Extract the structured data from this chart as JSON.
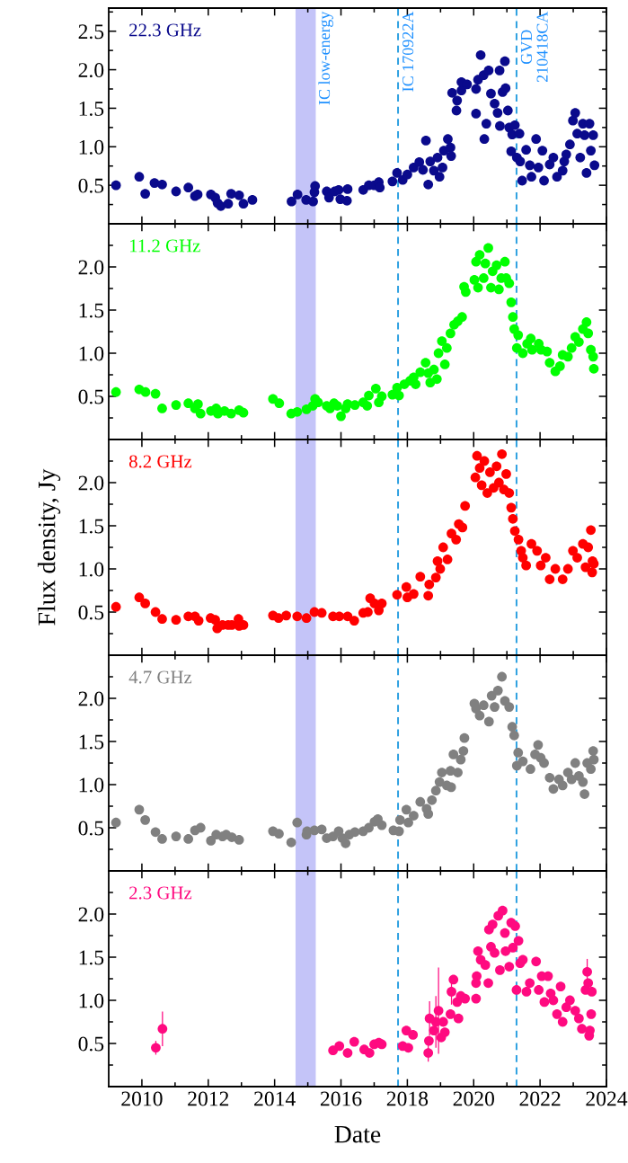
{
  "chart_data": [
    {
      "type": "scatter",
      "marker": "circle",
      "tick_labels": "y",
      "xlim": [
        2009,
        2024
      ],
      "ylim": [
        0,
        2.8
      ],
      "xticks": [
        2010,
        {
          "value": 2011,
          "label": null
        },
        2012,
        {
          "value": 2013,
          "label": null
        },
        2014,
        {
          "value": 2015,
          "label": null
        },
        2016,
        {
          "value": 2017,
          "label": null
        },
        2018,
        {
          "value": 2019,
          "label": null
        },
        2020,
        {
          "value": 2021,
          "label": null
        },
        2022,
        {
          "value": 2023,
          "label": null
        },
        2024
      ],
      "yticks": [
        {
          "value": 0.25,
          "label": null
        },
        0.5,
        {
          "value": 0.75,
          "label": null
        },
        {
          "value": 1.0,
          "label": "1.0"
        },
        {
          "value": 1.25,
          "label": null
        },
        1.5,
        {
          "value": 1.75,
          "label": null
        },
        {
          "value": 2.0,
          "label": "2.0"
        },
        {
          "value": 2.25,
          "label": null
        },
        2.5,
        {
          "value": 2.75,
          "label": null
        }
      ],
      "bands": [
        {
          "axis": "x",
          "from": 2014.63,
          "to": 2015.24,
          "label": "IC low-energy",
          "color": "#c4c4f8"
        }
      ],
      "ref_lines": [
        {
          "axis": "x",
          "value": 2017.72,
          "label": "IC 170922A",
          "color": "#2a9fe0",
          "line_style": "dashed"
        },
        {
          "axis": "x",
          "value": 2021.29,
          "label": "GVD\n210418CA",
          "color": "#2a9fe0",
          "line_style": "dashed"
        }
      ],
      "series": [
        {
          "name": "22.3 GHz",
          "color": "#0a0a8c",
          "x": [
            2009.22,
            2009.92,
            2010.1,
            2010.38,
            2010.61,
            2011.03,
            2011.4,
            2011.6,
            2011.68,
            2012.08,
            2012.21,
            2012.28,
            2012.38,
            2012.6,
            2012.69,
            2012.93,
            2013.06,
            2013.33,
            2014.51,
            2014.69,
            2014.95,
            2015.16,
            2015.22,
            2015.2,
            2015.57,
            2015.64,
            2015.81,
            2015.93,
            2015.98,
            2016.18,
            2016.2,
            2016.67,
            2016.84,
            2017.0,
            2017.14,
            2017.17,
            2017.55,
            2017.69,
            2017.86,
            2018.0,
            2018.19,
            2018.36,
            2018.47,
            2018.56,
            2018.63,
            2018.69,
            2018.8,
            2018.91,
            2018.97,
            2019.06,
            2019.1,
            2019.22,
            2019.3,
            2019.32,
            2019.35,
            2019.48,
            2019.5,
            2019.63,
            2019.63,
            2019.8,
            2020.07,
            2020.07,
            2020.13,
            2020.21,
            2020.3,
            2020.32,
            2020.38,
            2020.45,
            2020.52,
            2020.63,
            2020.72,
            2020.78,
            2020.79,
            2020.87,
            2020.94,
            2020.96,
            2021.03,
            2021.07,
            2021.13,
            2021.16,
            2021.24,
            2021.3,
            2021.38,
            2021.4,
            2021.46,
            2021.58,
            2021.69,
            2021.74,
            2021.88,
            2021.95,
            2022.07,
            2022.12,
            2022.29,
            2022.4,
            2022.51,
            2022.68,
            2022.73,
            2022.79,
            2022.9,
            2022.99,
            2023.06,
            2023.12,
            2023.21,
            2023.29,
            2023.34,
            2023.4,
            2023.49,
            2023.53,
            2023.6,
            2023.64
          ],
          "values": [
            0.5,
            0.61,
            0.39,
            0.53,
            0.51,
            0.42,
            0.47,
            0.36,
            0.38,
            0.38,
            0.34,
            0.27,
            0.23,
            0.26,
            0.39,
            0.37,
            0.26,
            0.31,
            0.29,
            0.38,
            0.31,
            0.29,
            0.49,
            0.41,
            0.42,
            0.34,
            0.42,
            0.44,
            0.32,
            0.3,
            0.45,
            0.44,
            0.5,
            0.5,
            0.54,
            0.47,
            0.55,
            0.66,
            0.57,
            0.64,
            0.73,
            0.8,
            0.7,
            1.08,
            0.51,
            0.81,
            0.69,
            0.86,
            0.61,
            0.73,
            0.95,
            1.1,
            0.99,
            0.88,
            1.7,
            1.47,
            1.6,
            1.73,
            1.84,
            1.81,
            1.43,
            1.75,
            1.87,
            2.19,
            1.93,
            1.1,
            1.3,
            1.99,
            1.69,
            1.56,
            1.44,
            1.99,
            1.27,
            1.71,
            2.11,
            1.76,
            1.47,
            1.25,
            0.94,
            1.16,
            1.28,
            0.86,
            1.17,
            0.81,
            0.56,
            0.96,
            0.76,
            0.61,
            1.1,
            0.73,
            0.95,
            0.56,
            0.77,
            0.86,
            0.61,
            0.69,
            0.81,
            0.9,
            1.03,
            1.34,
            1.44,
            1.17,
            0.86,
            1.3,
            1.15,
            0.66,
            1.3,
            0.95,
            1.15,
            0.76
          ]
        }
      ]
    },
    {
      "type": "scatter",
      "marker": "circle",
      "tick_labels": "y",
      "xlim": [
        2009,
        2024
      ],
      "ylim": [
        0,
        2.5
      ],
      "xticks": [
        2010,
        {
          "value": 2011,
          "label": null
        },
        2012,
        {
          "value": 2013,
          "label": null
        },
        2014,
        {
          "value": 2015,
          "label": null
        },
        2016,
        {
          "value": 2017,
          "label": null
        },
        2018,
        {
          "value": 2019,
          "label": null
        },
        2020,
        {
          "value": 2021,
          "label": null
        },
        2022,
        {
          "value": 2023,
          "label": null
        },
        2024
      ],
      "yticks": [
        {
          "value": 0.25,
          "label": null
        },
        0.5,
        {
          "value": 0.75,
          "label": null
        },
        {
          "value": 1.0,
          "label": "1.0"
        },
        {
          "value": 1.25,
          "label": null
        },
        1.5,
        {
          "value": 1.75,
          "label": null
        },
        {
          "value": 2.0,
          "label": "2.0"
        },
        {
          "value": 2.25,
          "label": null
        }
      ],
      "bands": [
        {
          "axis": "x",
          "from": 2014.63,
          "to": 2015.24,
          "color": "#c4c4f8"
        }
      ],
      "ref_lines": [
        {
          "axis": "x",
          "value": 2017.72,
          "color": "#2a9fe0",
          "line_style": "dashed"
        },
        {
          "axis": "x",
          "value": 2021.29,
          "color": "#2a9fe0",
          "line_style": "dashed"
        }
      ],
      "series": [
        {
          "name": "11.2 GHz",
          "color": "#00ff00",
          "x": [
            2009.22,
            2009.92,
            2010.11,
            2010.41,
            2010.61,
            2011.03,
            2011.4,
            2011.6,
            2011.69,
            2011.77,
            2012.08,
            2012.24,
            2012.29,
            2012.49,
            2012.69,
            2012.93,
            2013.06,
            2013.95,
            2014.14,
            2014.5,
            2014.68,
            2014.96,
            2015.15,
            2015.22,
            2015.31,
            2015.57,
            2015.67,
            2015.79,
            2015.89,
            2016.0,
            2016.14,
            2016.2,
            2016.42,
            2016.67,
            2016.79,
            2016.84,
            2017.05,
            2017.14,
            2017.23,
            2017.55,
            2017.69,
            2017.75,
            2017.91,
            2018.08,
            2018.19,
            2018.25,
            2018.39,
            2018.55,
            2018.63,
            2018.69,
            2018.8,
            2018.89,
            2018.94,
            2019.04,
            2019.13,
            2019.19,
            2019.3,
            2019.41,
            2019.52,
            2019.65,
            2019.71,
            2019.76,
            2020.02,
            2020.07,
            2020.13,
            2020.18,
            2020.3,
            2020.35,
            2020.44,
            2020.52,
            2020.57,
            2020.69,
            2020.76,
            2020.83,
            2020.94,
            2020.98,
            2021.07,
            2021.13,
            2021.18,
            2021.22,
            2021.3,
            2021.34,
            2021.48,
            2021.61,
            2021.72,
            2021.76,
            2021.96,
            2022.03,
            2022.21,
            2022.29,
            2022.46,
            2022.6,
            2022.68,
            2022.84,
            2022.95,
            2023.06,
            2023.17,
            2023.29,
            2023.4,
            2023.45,
            2023.53,
            2023.6,
            2023.62
          ],
          "values": [
            0.55,
            0.58,
            0.55,
            0.53,
            0.36,
            0.4,
            0.42,
            0.36,
            0.41,
            0.3,
            0.33,
            0.36,
            0.3,
            0.33,
            0.3,
            0.34,
            0.31,
            0.47,
            0.42,
            0.3,
            0.32,
            0.35,
            0.39,
            0.47,
            0.43,
            0.39,
            0.36,
            0.42,
            0.39,
            0.27,
            0.36,
            0.41,
            0.4,
            0.43,
            0.39,
            0.51,
            0.59,
            0.43,
            0.5,
            0.52,
            0.6,
            0.51,
            0.64,
            0.68,
            0.72,
            0.64,
            0.78,
            0.89,
            0.77,
            0.66,
            0.81,
            0.7,
            1.0,
            1.14,
            0.87,
            1.06,
            1.23,
            1.33,
            1.37,
            1.42,
            1.77,
            1.71,
            1.85,
            2.06,
            1.76,
            2.14,
            1.87,
            2.04,
            2.22,
            1.76,
            1.95,
            2.02,
            1.74,
            1.87,
            2.06,
            1.87,
            1.81,
            1.59,
            1.42,
            1.28,
            1.06,
            1.21,
            1.0,
            1.11,
            1.17,
            1.04,
            1.11,
            1.04,
            1.02,
            0.89,
            0.79,
            0.85,
            0.98,
            0.96,
            1.06,
            1.19,
            1.13,
            1.28,
            1.36,
            1.23,
            1.04,
            0.96,
            0.82
          ]
        }
      ]
    },
    {
      "type": "scatter",
      "marker": "circle",
      "tick_labels": "y",
      "xlim": [
        2009,
        2024
      ],
      "ylim": [
        0,
        2.5
      ],
      "ylabel": "Flux density, Jy",
      "xticks": [
        2010,
        {
          "value": 2011,
          "label": null
        },
        2012,
        {
          "value": 2013,
          "label": null
        },
        2014,
        {
          "value": 2015,
          "label": null
        },
        2016,
        {
          "value": 2017,
          "label": null
        },
        2018,
        {
          "value": 2019,
          "label": null
        },
        2020,
        {
          "value": 2021,
          "label": null
        },
        2022,
        {
          "value": 2023,
          "label": null
        },
        2024
      ],
      "yticks": [
        {
          "value": 0.25,
          "label": null
        },
        0.5,
        {
          "value": 0.75,
          "label": null
        },
        {
          "value": 1.0,
          "label": "1.0"
        },
        {
          "value": 1.25,
          "label": null
        },
        1.5,
        {
          "value": 1.75,
          "label": null
        },
        {
          "value": 2.0,
          "label": "2.0"
        },
        {
          "value": 2.25,
          "label": null
        }
      ],
      "bands": [
        {
          "axis": "x",
          "from": 2014.63,
          "to": 2015.24,
          "color": "#c4c4f8"
        }
      ],
      "ref_lines": [
        {
          "axis": "x",
          "value": 2017.72,
          "color": "#2a9fe0",
          "line_style": "dashed"
        },
        {
          "axis": "x",
          "value": 2021.29,
          "color": "#2a9fe0",
          "line_style": "dashed"
        }
      ],
      "series": [
        {
          "name": "8.2 GHz",
          "color": "#ff0000",
          "x": [
            2009.22,
            2009.92,
            2010.1,
            2010.41,
            2010.61,
            2011.03,
            2011.4,
            2011.6,
            2011.71,
            2012.07,
            2012.21,
            2012.27,
            2012.43,
            2012.6,
            2012.71,
            2012.91,
            2012.93,
            2013.06,
            2013.95,
            2014.12,
            2014.35,
            2014.68,
            2014.96,
            2015.2,
            2015.42,
            2015.76,
            2015.95,
            2016.2,
            2016.4,
            2016.67,
            2016.81,
            2016.88,
            2017.01,
            2017.14,
            2017.23,
            2017.69,
            2017.97,
            2018.0,
            2018.19,
            2018.39,
            2018.63,
            2018.66,
            2018.86,
            2018.91,
            2018.99,
            2019.08,
            2019.21,
            2019.33,
            2019.47,
            2019.55,
            2019.66,
            2019.74,
            2020.05,
            2020.1,
            2020.18,
            2020.24,
            2020.32,
            2020.41,
            2020.49,
            2020.6,
            2020.69,
            2020.76,
            2020.85,
            2020.91,
            2020.98,
            2021.07,
            2021.13,
            2021.18,
            2021.24,
            2021.35,
            2021.43,
            2021.48,
            2021.58,
            2021.74,
            2021.91,
            2022.02,
            2022.17,
            2022.29,
            2022.46,
            2022.68,
            2022.84,
            2022.99,
            2023.12,
            2023.29,
            2023.37,
            2023.45,
            2023.53,
            2023.58,
            2023.62,
            2023.57
          ],
          "values": [
            0.56,
            0.67,
            0.6,
            0.5,
            0.42,
            0.41,
            0.45,
            0.45,
            0.4,
            0.43,
            0.41,
            0.31,
            0.35,
            0.35,
            0.35,
            0.42,
            0.34,
            0.35,
            0.46,
            0.43,
            0.46,
            0.45,
            0.43,
            0.5,
            0.49,
            0.45,
            0.45,
            0.45,
            0.4,
            0.49,
            0.5,
            0.66,
            0.6,
            0.52,
            0.6,
            0.7,
            0.79,
            0.67,
            0.71,
            0.91,
            0.69,
            0.82,
            0.9,
            1.09,
            1.0,
            1.25,
            1.11,
            1.41,
            1.34,
            1.52,
            1.48,
            1.73,
            2.06,
            2.31,
            2.17,
            1.97,
            2.25,
            1.88,
            2.12,
            1.94,
            2.19,
            2.0,
            2.33,
            1.92,
            2.1,
            1.88,
            1.71,
            1.58,
            1.44,
            1.34,
            1.21,
            1.13,
            1.04,
            1.29,
            1.21,
            1.04,
            1.13,
            0.88,
            1.0,
            0.88,
            1.0,
            1.21,
            1.13,
            1.29,
            1.02,
            1.25,
            1.45,
            1.09,
            1.06,
            0.96
          ]
        }
      ]
    },
    {
      "type": "scatter",
      "marker": "circle",
      "tick_labels": "y",
      "xlim": [
        2009,
        2024
      ],
      "ylim": [
        0,
        2.5
      ],
      "xticks": [
        2010,
        {
          "value": 2011,
          "label": null
        },
        2012,
        {
          "value": 2013,
          "label": null
        },
        2014,
        {
          "value": 2015,
          "label": null
        },
        2016,
        {
          "value": 2017,
          "label": null
        },
        2018,
        {
          "value": 2019,
          "label": null
        },
        2020,
        {
          "value": 2021,
          "label": null
        },
        2022,
        {
          "value": 2023,
          "label": null
        },
        2024
      ],
      "yticks": [
        {
          "value": 0.25,
          "label": null
        },
        0.5,
        {
          "value": 0.75,
          "label": null
        },
        {
          "value": 1.0,
          "label": "1.0"
        },
        {
          "value": 1.25,
          "label": null
        },
        1.5,
        {
          "value": 1.75,
          "label": null
        },
        {
          "value": 2.0,
          "label": "2.0"
        },
        {
          "value": 2.25,
          "label": null
        }
      ],
      "bands": [
        {
          "axis": "x",
          "from": 2014.63,
          "to": 2015.24,
          "color": "#c4c4f8"
        }
      ],
      "ref_lines": [
        {
          "axis": "x",
          "value": 2017.72,
          "color": "#2a9fe0",
          "line_style": "dashed"
        },
        {
          "axis": "x",
          "value": 2021.29,
          "color": "#2a9fe0",
          "line_style": "dashed"
        }
      ],
      "series": [
        {
          "name": "4.7 GHz",
          "color": "#808080",
          "x": [
            2009.22,
            2009.92,
            2010.1,
            2010.41,
            2010.61,
            2011.03,
            2011.4,
            2011.6,
            2011.77,
            2012.08,
            2012.24,
            2012.43,
            2012.54,
            2012.71,
            2012.93,
            2013.95,
            2014.13,
            2014.5,
            2014.68,
            2014.96,
            2014.98,
            2015.2,
            2015.42,
            2015.57,
            2015.76,
            2015.93,
            2016.04,
            2016.14,
            2016.25,
            2016.42,
            2016.67,
            2016.84,
            2017.01,
            2017.11,
            2017.23,
            2017.58,
            2017.75,
            2017.78,
            2017.97,
            2018.03,
            2018.19,
            2018.39,
            2018.58,
            2018.63,
            2018.74,
            2018.86,
            2018.97,
            2019.04,
            2019.19,
            2019.32,
            2019.3,
            2019.39,
            2019.52,
            2019.61,
            2019.69,
            2019.72,
            2020.02,
            2020.07,
            2020.18,
            2020.3,
            2020.46,
            2020.54,
            2020.63,
            2020.73,
            2020.85,
            2020.94,
            2021.07,
            2021.16,
            2021.22,
            2021.3,
            2021.34,
            2021.48,
            2021.71,
            2021.85,
            2021.94,
            2022.02,
            2022.12,
            2022.29,
            2022.4,
            2022.57,
            2022.68,
            2022.84,
            2022.95,
            2023.06,
            2023.17,
            2023.29,
            2023.34,
            2023.42,
            2023.53,
            2023.6,
            2023.62
          ],
          "values": [
            0.56,
            0.71,
            0.59,
            0.45,
            0.37,
            0.4,
            0.37,
            0.47,
            0.5,
            0.35,
            0.42,
            0.4,
            0.42,
            0.39,
            0.36,
            0.46,
            0.43,
            0.33,
            0.56,
            0.42,
            0.46,
            0.47,
            0.48,
            0.38,
            0.4,
            0.46,
            0.38,
            0.32,
            0.42,
            0.45,
            0.46,
            0.5,
            0.57,
            0.6,
            0.53,
            0.47,
            0.46,
            0.59,
            0.71,
            0.56,
            0.64,
            0.8,
            0.72,
            0.66,
            0.82,
            0.93,
            1.03,
            1.14,
            0.99,
            0.97,
            1.16,
            1.35,
            1.14,
            1.29,
            1.39,
            1.54,
            1.94,
            1.88,
            1.8,
            1.92,
            1.73,
            2.03,
            1.9,
            2.09,
            2.25,
            1.97,
            1.9,
            1.67,
            1.57,
            1.22,
            1.37,
            1.27,
            1.18,
            1.35,
            1.46,
            1.31,
            1.25,
            1.08,
            0.95,
            1.06,
            0.99,
            1.14,
            1.06,
            1.25,
            1.1,
            1.03,
            0.89,
            1.25,
            1.18,
            1.39,
            1.29
          ]
        }
      ]
    },
    {
      "type": "scatter",
      "marker": "circle",
      "xlim": [
        2009,
        2024
      ],
      "ylim": [
        0,
        2.5
      ],
      "xlabel": "Date",
      "xticks": [
        2010,
        {
          "value": 2011,
          "label": null
        },
        2012,
        {
          "value": 2013,
          "label": null
        },
        2014,
        {
          "value": 2015,
          "label": null
        },
        2016,
        {
          "value": 2017,
          "label": null
        },
        2018,
        {
          "value": 2019,
          "label": null
        },
        2020,
        {
          "value": 2021,
          "label": null
        },
        2022,
        {
          "value": 2023,
          "label": null
        },
        2024
      ],
      "yticks": [
        {
          "value": 0.25,
          "label": null
        },
        0.5,
        {
          "value": 0.75,
          "label": null
        },
        {
          "value": 1.0,
          "label": "1.0"
        },
        {
          "value": 1.25,
          "label": null
        },
        1.5,
        {
          "value": 1.75,
          "label": null
        },
        {
          "value": 2.0,
          "label": "2.0"
        },
        {
          "value": 2.25,
          "label": null
        }
      ],
      "bands": [
        {
          "axis": "x",
          "from": 2014.63,
          "to": 2015.24,
          "color": "#c4c4f8"
        }
      ],
      "ref_lines": [
        {
          "axis": "x",
          "value": 2017.72,
          "color": "#2a9fe0",
          "line_style": "dashed"
        },
        {
          "axis": "x",
          "value": 2021.29,
          "color": "#2a9fe0",
          "line_style": "dashed"
        }
      ],
      "series": [
        {
          "name": "2.3 GHz",
          "color": "#ff0a80",
          "x": [
            2010.42,
            2010.62,
            2015.76,
            2015.95,
            2016.2,
            2016.4,
            2016.7,
            2016.86,
            2017.0,
            2017.14,
            2017.23,
            2017.86,
            2017.97,
            2018.03,
            2018.17,
            2018.63,
            2018.65,
            2018.67,
            2018.8,
            2018.86,
            2018.94,
            2019.02,
            2019.08,
            2019.13,
            2019.3,
            2019.33,
            2019.39,
            2019.5,
            2019.54,
            2019.61,
            2019.74,
            2020.07,
            2020.07,
            2020.09,
            2020.13,
            2020.21,
            2020.35,
            2020.44,
            2020.46,
            2020.52,
            2020.57,
            2020.63,
            2020.74,
            2020.79,
            2020.87,
            2020.94,
            2020.96,
            2021.07,
            2021.13,
            2021.18,
            2021.25,
            2021.29,
            2021.35,
            2021.4,
            2021.48,
            2021.59,
            2021.69,
            2021.88,
            2021.96,
            2022.05,
            2022.13,
            2022.24,
            2022.32,
            2022.4,
            2022.51,
            2022.62,
            2022.68,
            2022.79,
            2022.9,
            2023.06,
            2023.17,
            2023.26,
            2023.37,
            2023.42,
            2023.45,
            2023.48,
            2023.5,
            2023.54,
            2023.56
          ],
          "values": [
            0.45,
            0.67,
            0.42,
            0.47,
            0.39,
            0.52,
            0.43,
            0.39,
            0.49,
            0.51,
            0.49,
            0.47,
            0.65,
            0.45,
            0.6,
            0.39,
            0.53,
            0.79,
            0.65,
            0.75,
            0.88,
            0.57,
            0.75,
            0.63,
            0.84,
            1.1,
            1.24,
            0.98,
            0.79,
            1.05,
            1.02,
            1.2,
            1.02,
            1.28,
            1.57,
            1.47,
            1.41,
            1.2,
            1.82,
            1.62,
            1.88,
            1.55,
            1.98,
            1.35,
            2.04,
            1.78,
            1.57,
            1.39,
            1.9,
            1.61,
            1.86,
            1.12,
            1.69,
            1.43,
            1.47,
            1.1,
            1.2,
            1.45,
            1.12,
            1.28,
            0.98,
            1.28,
            1.08,
            1.0,
            0.84,
            1.16,
            0.75,
            0.92,
            1.0,
            0.88,
            0.79,
            0.67,
            1.12,
            1.33,
            1.2,
            0.59,
            0.65,
            0.84,
            1.1
          ],
          "errors": [
            0.08,
            0.2,
            null,
            null,
            null,
            null,
            null,
            null,
            null,
            null,
            null,
            null,
            null,
            null,
            null,
            0.1,
            null,
            0.2,
            null,
            0.3,
            0.5,
            null,
            null,
            null,
            null,
            0.15,
            null,
            null,
            null,
            null,
            null,
            null,
            null,
            null,
            null,
            null,
            null,
            null,
            null,
            null,
            null,
            null,
            null,
            null,
            null,
            null,
            null,
            null,
            null,
            null,
            null,
            null,
            null,
            null,
            null,
            null,
            null,
            null,
            null,
            null,
            null,
            null,
            null,
            null,
            null,
            null,
            null,
            null,
            null,
            null,
            null,
            null,
            null,
            0.15,
            null,
            null,
            null,
            null,
            null
          ]
        }
      ]
    }
  ]
}
